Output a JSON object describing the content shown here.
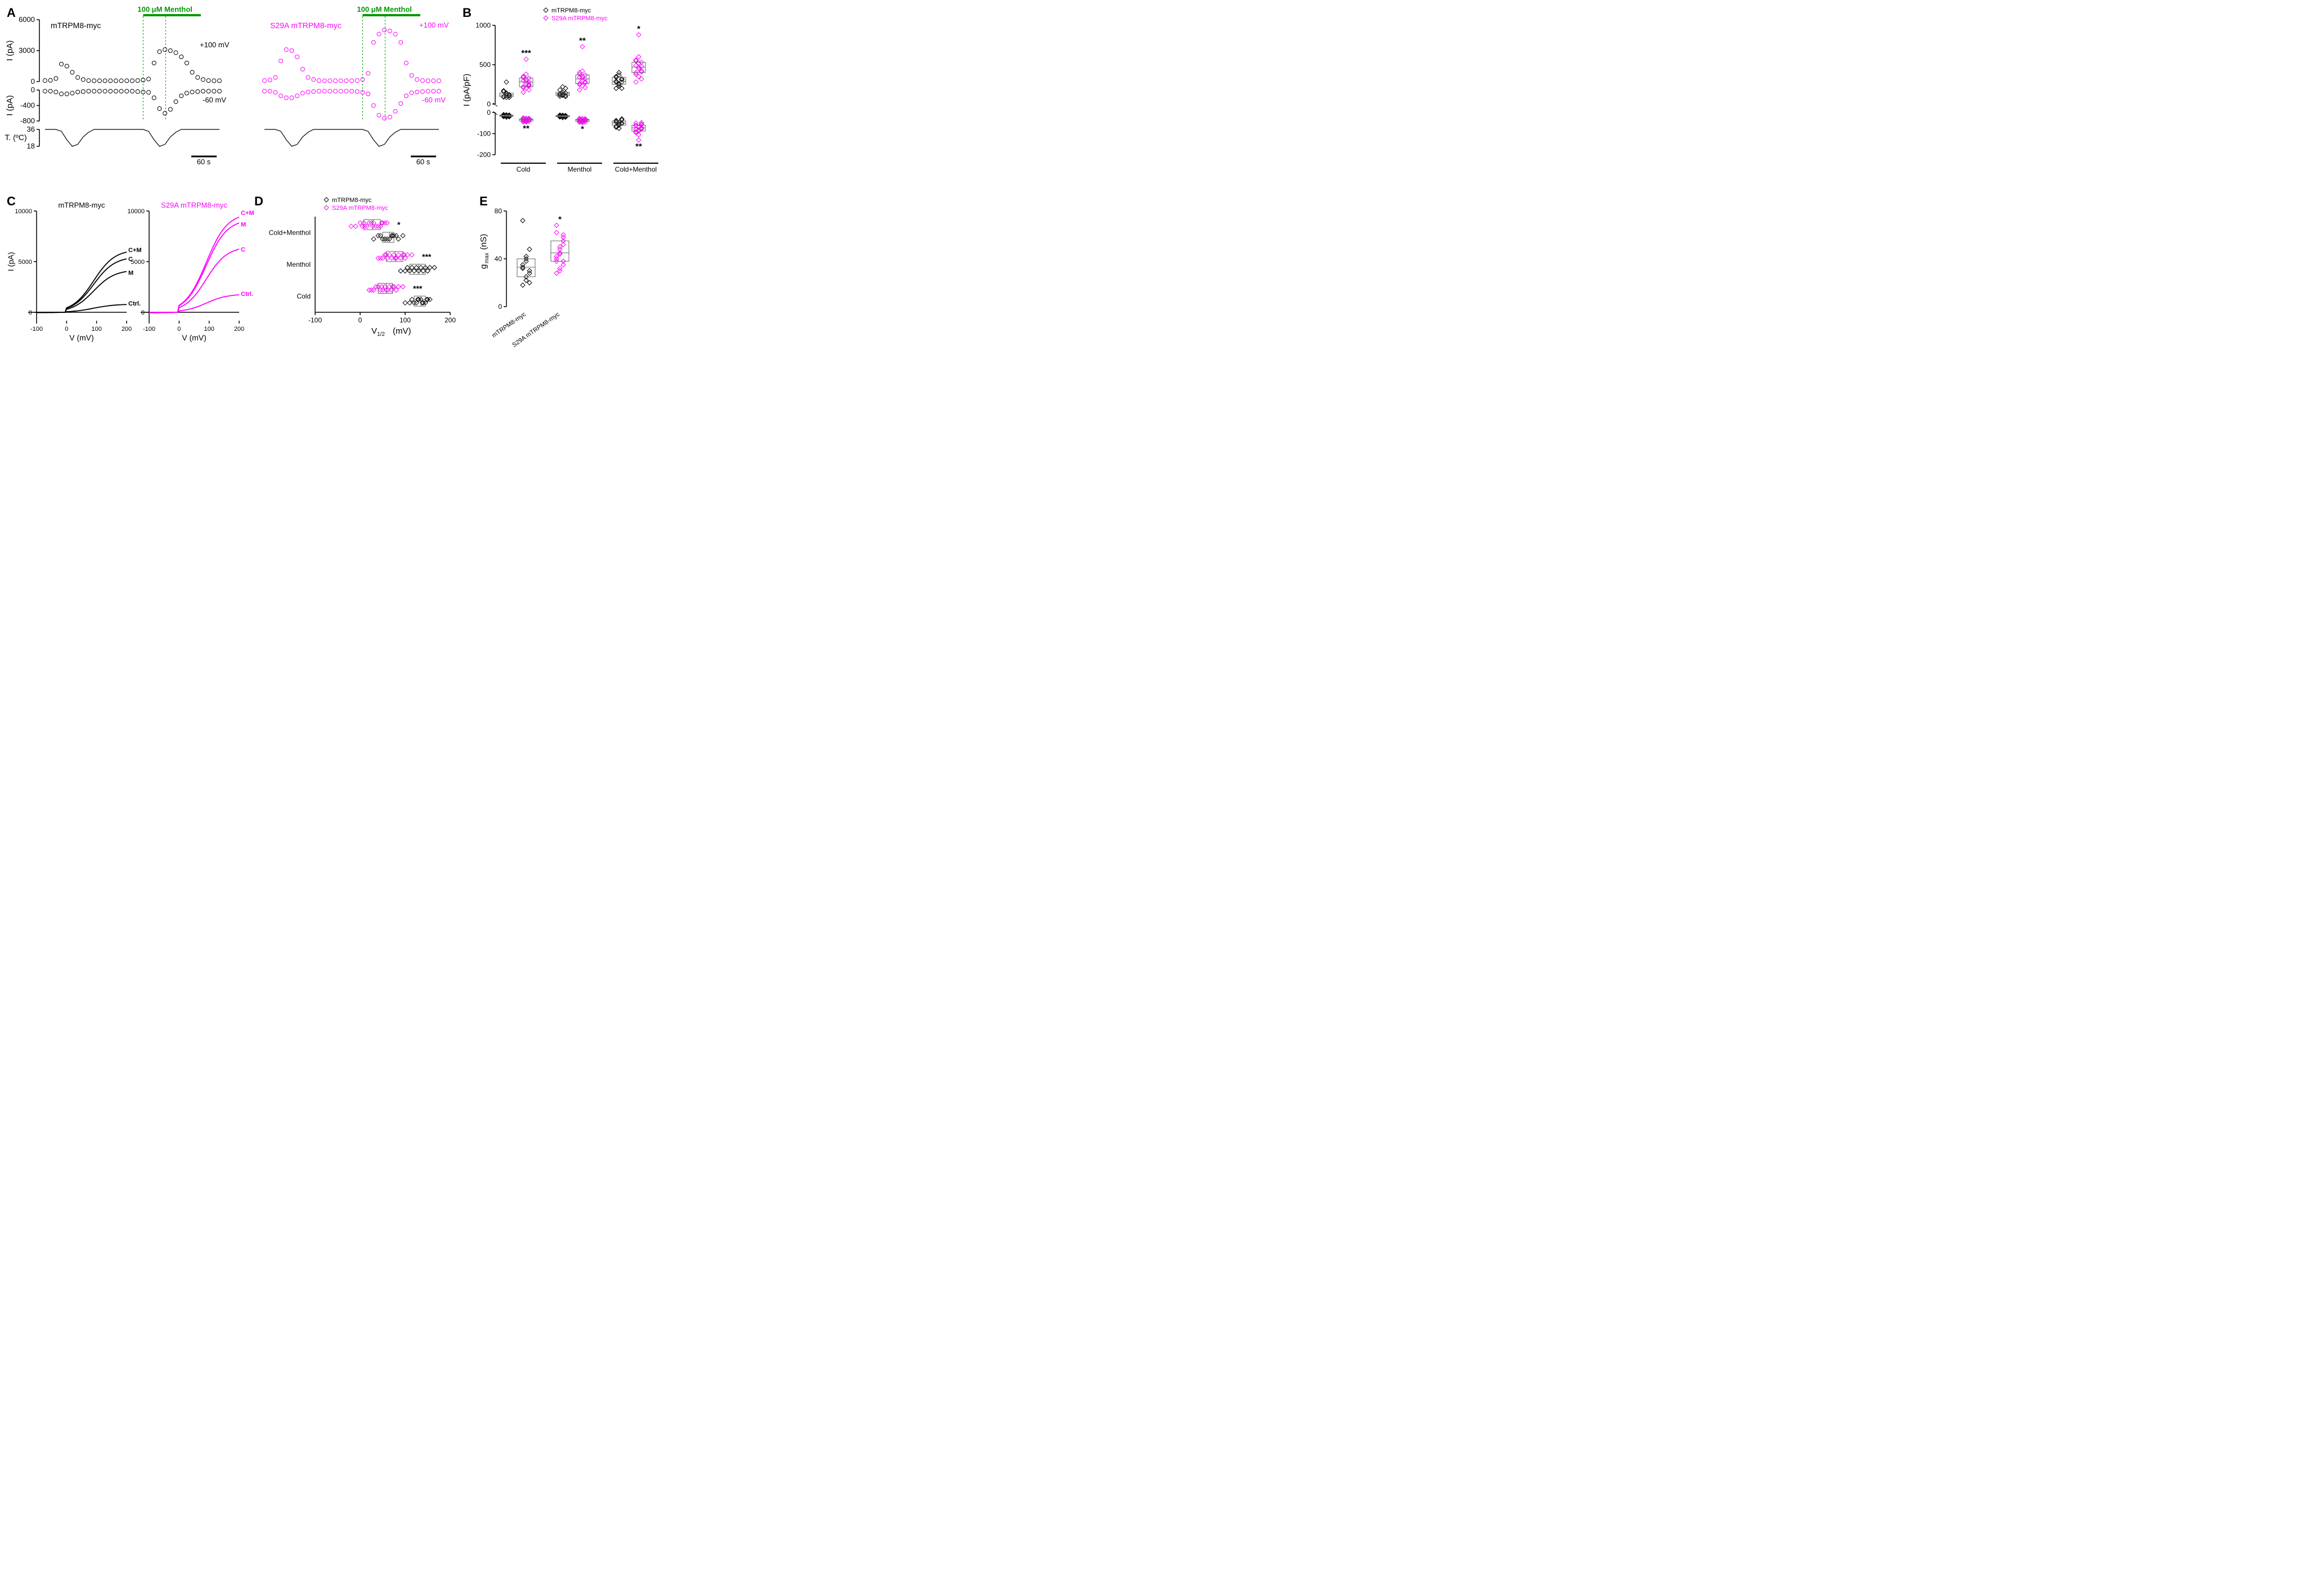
{
  "legend": {
    "wt": "mTRPM8-myc",
    "mut": "S29A mTRPM8-myc"
  },
  "panelA": {
    "label": "A",
    "menthol_label": "100 μM Menthol",
    "wt_title": "mTRPM8-myc",
    "mut_title": "S29A mTRPM8-myc",
    "y_top_label": "I (pA)",
    "y_mid_label": "I (pA)",
    "y_bot_label": "T. (ºC)",
    "v100": "+100 mV",
    "vm60": "-60 mV",
    "top_ticks": [
      0,
      3000,
      6000
    ],
    "mid_ticks": [
      -800,
      -400,
      0
    ],
    "bot_ticks": [
      18,
      36
    ],
    "scale_bar": "60 s",
    "wt_top": [
      100,
      120,
      300,
      1700,
      1500,
      900,
      400,
      200,
      100,
      80,
      80,
      80,
      80,
      80,
      80,
      80,
      80,
      100,
      150,
      250,
      1800,
      2900,
      3100,
      3000,
      2800,
      2400,
      1800,
      900,
      400,
      200,
      100,
      80,
      80
    ],
    "wt_mid": [
      -30,
      -30,
      -50,
      -100,
      -100,
      -80,
      -50,
      -40,
      -30,
      -30,
      -30,
      -30,
      -30,
      -30,
      -30,
      -30,
      -30,
      -40,
      -50,
      -60,
      -200,
      -480,
      -600,
      -500,
      -300,
      -150,
      -80,
      -50,
      -40,
      -30,
      -30,
      -30,
      -30
    ],
    "wt_temp": [
      36,
      36,
      36,
      34,
      25,
      18,
      20,
      28,
      33,
      36,
      36,
      36,
      36,
      36,
      36,
      36,
      36,
      36,
      36,
      34,
      25,
      18,
      20,
      28,
      33,
      36,
      36,
      36,
      36,
      36,
      36,
      36,
      36
    ],
    "mut_top": [
      100,
      150,
      400,
      2000,
      3100,
      3000,
      2400,
      1200,
      400,
      200,
      100,
      80,
      80,
      80,
      80,
      80,
      80,
      100,
      200,
      800,
      3800,
      4600,
      5000,
      4900,
      4600,
      3800,
      1800,
      600,
      200,
      100,
      80,
      80,
      80
    ],
    "mut_mid": [
      -30,
      -30,
      -60,
      -150,
      -200,
      -200,
      -150,
      -80,
      -50,
      -40,
      -30,
      -30,
      -30,
      -30,
      -30,
      -30,
      -30,
      -40,
      -60,
      -100,
      -400,
      -650,
      -730,
      -700,
      -550,
      -350,
      -150,
      -70,
      -50,
      -40,
      -30,
      -30,
      -30
    ],
    "mut_temp": [
      36,
      36,
      36,
      34,
      25,
      18,
      20,
      28,
      33,
      36,
      36,
      36,
      36,
      36,
      36,
      36,
      36,
      36,
      36,
      34,
      25,
      18,
      20,
      28,
      33,
      36,
      36,
      36,
      36,
      36,
      36,
      36,
      36
    ]
  },
  "panelB": {
    "label": "B",
    "y_label": "I (pA/pF)",
    "y_ticks": [
      -200,
      -100,
      0,
      0,
      500,
      1000
    ],
    "y_ticks_draw": [
      -200,
      -100,
      0,
      500,
      1000
    ],
    "conditions": [
      "Cold",
      "Menthol",
      "Cold+Menthol"
    ],
    "sig_top": [
      "***",
      "**",
      "*"
    ],
    "sig_bot": [
      "**",
      "*",
      "**"
    ],
    "wt_pos": {
      "Cold": [
        90,
        110,
        85,
        160,
        280,
        105,
        95,
        130,
        115,
        170,
        140,
        120,
        95,
        85
      ],
      "Menthol": [
        100,
        130,
        95,
        180,
        220,
        110,
        120,
        150,
        200,
        130,
        110,
        140,
        125,
        115
      ],
      "ColdMenthol": [
        200,
        250,
        280,
        350,
        400,
        320,
        290,
        260,
        310,
        340,
        230,
        200,
        280,
        370
      ]
    },
    "wt_neg": {
      "Cold": [
        -15,
        -12,
        -18,
        -10,
        -22,
        -14,
        -16,
        -11,
        -20,
        -13,
        -17,
        -12,
        -19,
        -15
      ],
      "Menthol": [
        -18,
        -14,
        -20,
        -12,
        -24,
        -16,
        -18,
        -13,
        -22,
        -15,
        -19,
        -14,
        -21,
        -17
      ],
      "ColdMenthol": [
        -40,
        -55,
        -30,
        -65,
        -75,
        -50,
        -45,
        -60,
        -35,
        -70,
        -48,
        -52,
        -38,
        -58
      ]
    },
    "mut_pos": {
      "Cold": [
        150,
        200,
        250,
        350,
        570,
        280,
        220,
        310,
        180,
        340,
        260,
        230,
        300,
        380,
        240,
        210,
        290,
        330
      ],
      "Menthol": [
        180,
        230,
        280,
        400,
        730,
        320,
        260,
        350,
        210,
        380,
        300,
        270,
        340,
        420,
        280,
        250,
        330,
        370
      ],
      "ColdMenthol": [
        280,
        350,
        420,
        550,
        880,
        480,
        400,
        520,
        320,
        560,
        450,
        410,
        490,
        600,
        420,
        380,
        470,
        530
      ]
    },
    "mut_neg": {
      "Cold": [
        -25,
        -32,
        -28,
        -40,
        -45,
        -30,
        -35,
        -27,
        -42,
        -31,
        -38,
        -29,
        -44,
        -33,
        -36,
        -30,
        -41,
        -34
      ],
      "Menthol": [
        -28,
        -35,
        -30,
        -42,
        -48,
        -32,
        -38,
        -29,
        -45,
        -33,
        -40,
        -31,
        -46,
        -35,
        -38,
        -32,
        -43,
        -36
      ],
      "ColdMenthol": [
        -50,
        -70,
        -55,
        -90,
        -130,
        -75,
        -60,
        -85,
        -48,
        -95,
        -68,
        -58,
        -80,
        -105,
        -72,
        -62,
        -88,
        -78
      ]
    }
  },
  "panelC": {
    "label": "C",
    "y_label": "I (pA)",
    "x_label": "V (mV)",
    "y_ticks": [
      0,
      5000,
      10000
    ],
    "x_ticks": [
      -100,
      0,
      100,
      200
    ],
    "wt_title": "mTRPM8-myc",
    "mut_title": "S29A mTRPM8-myc",
    "trace_labels": {
      "ctrl": "Ctrl.",
      "c": "C",
      "m": "M",
      "cm": "C+M"
    }
  },
  "panelD": {
    "label": "D",
    "x_label": "V₁₂₂  (mV)",
    "x_label_plain": "V",
    "x_label_sub": "1/2",
    "x_label_unit": "(mV)",
    "x_ticks": [
      -100,
      0,
      100,
      200
    ],
    "conditions": [
      "Cold+Menthol",
      "Menthol",
      "Cold"
    ],
    "sig": [
      "*",
      "***",
      "***"
    ],
    "wt": {
      "ColdMenthol": [
        30,
        45,
        55,
        70,
        85,
        95,
        60,
        75,
        50,
        40,
        65,
        80,
        55,
        72
      ],
      "Menthol": [
        90,
        105,
        120,
        135,
        150,
        165,
        110,
        125,
        100,
        145,
        130,
        115,
        140,
        155
      ],
      "Cold": [
        100,
        115,
        125,
        135,
        145,
        155,
        120,
        130,
        110,
        150,
        140,
        128,
        138,
        148
      ]
    },
    "mut": {
      "ColdMenthol": [
        -20,
        0,
        15,
        30,
        45,
        60,
        10,
        25,
        5,
        50,
        35,
        20,
        40,
        55,
        -10,
        8,
        28,
        48
      ],
      "Menthol": [
        40,
        55,
        70,
        85,
        100,
        115,
        60,
        75,
        50,
        105,
        90,
        65,
        80,
        95,
        45,
        58,
        78,
        98
      ],
      "Cold": [
        20,
        35,
        50,
        65,
        80,
        95,
        45,
        55,
        30,
        85,
        70,
        48,
        62,
        75,
        25,
        40,
        58,
        72
      ]
    }
  },
  "panelE": {
    "label": "E",
    "y_label": "g",
    "y_label_sub": "max",
    "y_label_unit": "(nS)",
    "y_ticks": [
      0,
      40,
      80
    ],
    "x_labels": [
      "mTRPM8-myc",
      "S29A mTRPM8-myc"
    ],
    "sig": "*",
    "wt": [
      18,
      22,
      28,
      32,
      38,
      48,
      72,
      25,
      30,
      35,
      42,
      20,
      33,
      40
    ],
    "mut": [
      28,
      32,
      38,
      42,
      48,
      55,
      68,
      30,
      35,
      40,
      50,
      58,
      62,
      45,
      52,
      38,
      44,
      60
    ]
  },
  "colors": {
    "wt": "#000000",
    "mut": "#ff00ff",
    "green": "#009900",
    "box": "#808080"
  }
}
